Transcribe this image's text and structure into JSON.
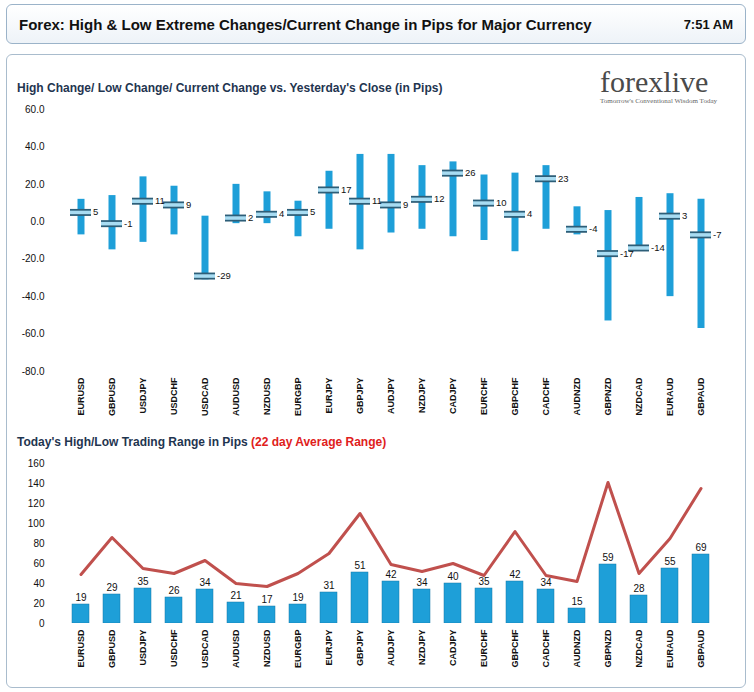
{
  "header": {
    "title": "Forex:  High & Low Extreme Changes/Current Change in Pips for Major Currency",
    "time": "7:51 AM"
  },
  "logo": {
    "name": "forexlive",
    "tagline": "Tomorrow's Conventional Wisdom Today"
  },
  "chart_data": [
    {
      "type": "range",
      "title": "High Change/ Low Change/ Current Change vs. Yesterday's Close (in Pips)",
      "categories": [
        "EURUSD",
        "GBPUSD",
        "USDJPY",
        "USDCHF",
        "USDCAD",
        "AUDUSD",
        "NZDUSD",
        "EURGBP",
        "EURJPY",
        "GBPJPY",
        "AUDJPY",
        "NZDJPY",
        "CADJPY",
        "EURCHF",
        "GBPCHF",
        "CADCHF",
        "AUDNZD",
        "GBPNZD",
        "NZDCAD",
        "EURAUD",
        "GBPAUD"
      ],
      "high": [
        12,
        14,
        24,
        19,
        3,
        20,
        16,
        11,
        27,
        36,
        36,
        30,
        32,
        25,
        26,
        30,
        8,
        6,
        13,
        15,
        12
      ],
      "low": [
        -7,
        -15,
        -11,
        -7,
        -31,
        -1,
        -1,
        -8,
        -4,
        -15,
        -6,
        -4,
        -8,
        -10,
        -16,
        -4,
        -7,
        -53,
        -15,
        -40,
        -57
      ],
      "values": [
        5,
        -1,
        11,
        9,
        -29,
        2,
        4,
        5,
        17,
        11,
        9,
        12,
        26,
        10,
        4,
        23,
        -4,
        -17,
        -14,
        3,
        -7
      ],
      "data_labels": true,
      "color": "#1e9fd8",
      "marker": "dash",
      "ylim": [
        -80,
        60
      ],
      "yticks": [
        {
          "value": -80,
          "label": "-80.0"
        },
        {
          "value": -60,
          "label": "-60.0"
        },
        {
          "value": -40,
          "label": "-40.0"
        },
        {
          "value": -20,
          "label": "-20.0"
        },
        {
          "value": 0,
          "label": "0.0"
        },
        {
          "value": 20,
          "label": "20.0"
        },
        {
          "value": 40,
          "label": "40.0"
        },
        {
          "value": 60,
          "label": "60.0"
        }
      ],
      "grid": false
    },
    {
      "type": "bar",
      "title": "Today's High/Low Trading Range in Pips",
      "categories": [
        "EURUSD",
        "GBPUSD",
        "USDJPY",
        "USDCHF",
        "USDCAD",
        "AUDUSD",
        "NZDUSD",
        "EURGBP",
        "EURJPY",
        "GBPJPY",
        "AUDJPY",
        "NZDJPY",
        "CADJPY",
        "EURCHF",
        "GBPCHF",
        "CADCHF",
        "AUDNZD",
        "GBPNZD",
        "NZDCAD",
        "EURAUD",
        "GBPAUD"
      ],
      "values": [
        19,
        29,
        35,
        26,
        34,
        21,
        17,
        19,
        31,
        51,
        42,
        34,
        40,
        35,
        42,
        34,
        15,
        59,
        28,
        55,
        69
      ],
      "data_labels": true,
      "color": "#1e9fd8",
      "series": [
        {
          "name": "(22 day Average Range)",
          "type": "line",
          "color": "#c0504d",
          "values": [
            49,
            86,
            55,
            50,
            63,
            40,
            37,
            50,
            70,
            110,
            59,
            52,
            60,
            48,
            92,
            48,
            42,
            141,
            50,
            85,
            135
          ]
        }
      ],
      "ylim": [
        0,
        160
      ],
      "yticks": [
        0,
        20,
        40,
        60,
        80,
        100,
        120,
        140,
        160
      ],
      "grid": false
    }
  ]
}
